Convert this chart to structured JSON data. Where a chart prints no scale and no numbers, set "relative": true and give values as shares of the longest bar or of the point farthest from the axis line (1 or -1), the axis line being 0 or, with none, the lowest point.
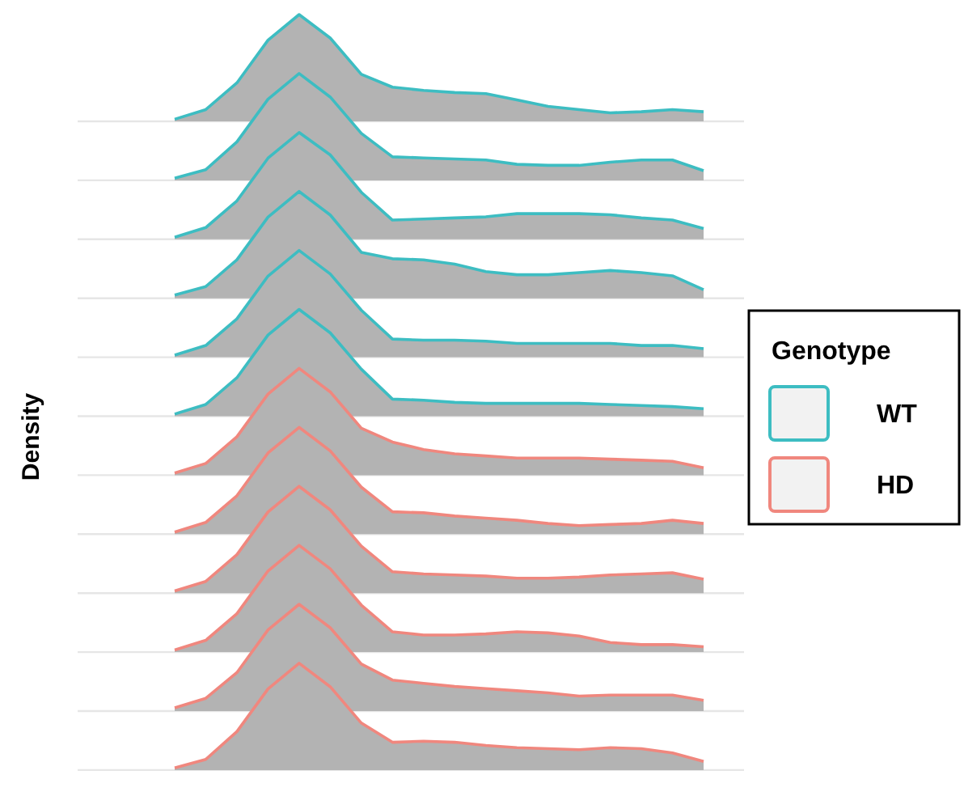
{
  "chart_data": [
    {
      "type": "area",
      "relative": true,
      "line_style": "solid",
      "legend": "right",
      "legend_title": "Genotype",
      "categories": [
        null,
        null,
        null,
        null,
        null,
        null,
        null,
        null,
        null,
        null,
        null,
        null,
        null,
        null,
        null,
        null,
        null,
        null
      ],
      "series": [
        {
          "name": "WT",
          "color": "#3dbdc2",
          "values": [
            0.02,
            0.11,
            0.36,
            0.76,
            1,
            0.78,
            0.44,
            0.32,
            0.29,
            0.27,
            0.26,
            0.2,
            0.14,
            0.11,
            0.08,
            0.09,
            0.11,
            0.09
          ]
        }
      ]
    },
    {
      "type": "area",
      "relative": true,
      "line_style": "solid",
      "categories": [
        null,
        null,
        null,
        null,
        null,
        null,
        null,
        null,
        null,
        null,
        null,
        null,
        null,
        null,
        null,
        null,
        null,
        null
      ],
      "series": [
        {
          "color": "#3dbdc2",
          "values": [
            0.02,
            0.1,
            0.36,
            0.76,
            1,
            0.78,
            0.44,
            0.22,
            0.21,
            0.2,
            0.19,
            0.15,
            0.14,
            0.14,
            0.17,
            0.19,
            0.19,
            0.09
          ]
        }
      ]
    },
    {
      "type": "area",
      "relative": true,
      "line_style": "solid",
      "categories": [
        null,
        null,
        null,
        null,
        null,
        null,
        null,
        null,
        null,
        null,
        null,
        null,
        null,
        null,
        null,
        null,
        null,
        null
      ],
      "series": [
        {
          "color": "#3dbdc2",
          "values": [
            0.02,
            0.11,
            0.36,
            0.76,
            1,
            0.79,
            0.44,
            0.18,
            0.19,
            0.2,
            0.21,
            0.24,
            0.24,
            0.24,
            0.23,
            0.2,
            0.18,
            0.1
          ]
        }
      ]
    },
    {
      "type": "area",
      "relative": true,
      "line_style": "solid",
      "categories": [
        null,
        null,
        null,
        null,
        null,
        null,
        null,
        null,
        null,
        null,
        null,
        null,
        null,
        null,
        null,
        null,
        null,
        null
      ],
      "series": [
        {
          "color": "#3dbdc2",
          "values": [
            0.03,
            0.11,
            0.36,
            0.76,
            1,
            0.78,
            0.43,
            0.37,
            0.36,
            0.32,
            0.25,
            0.22,
            0.22,
            0.24,
            0.26,
            0.24,
            0.21,
            0.08
          ]
        }
      ]
    },
    {
      "type": "area",
      "relative": true,
      "line_style": "solid",
      "categories": [
        null,
        null,
        null,
        null,
        null,
        null,
        null,
        null,
        null,
        null,
        null,
        null,
        null,
        null,
        null,
        null,
        null,
        null
      ],
      "series": [
        {
          "color": "#3dbdc2",
          "values": [
            0.02,
            0.11,
            0.36,
            0.76,
            1,
            0.78,
            0.44,
            0.17,
            0.16,
            0.16,
            0.15,
            0.13,
            0.13,
            0.13,
            0.13,
            0.11,
            0.11,
            0.08
          ]
        }
      ]
    },
    {
      "type": "area",
      "relative": true,
      "line_style": "solid",
      "ylabel": "Density",
      "categories": [
        null,
        null,
        null,
        null,
        null,
        null,
        null,
        null,
        null,
        null,
        null,
        null,
        null,
        null,
        null,
        null,
        null,
        null
      ],
      "series": [
        {
          "color": "#3dbdc2",
          "values": [
            0.02,
            0.11,
            0.36,
            0.76,
            1,
            0.78,
            0.44,
            0.16,
            0.15,
            0.13,
            0.12,
            0.12,
            0.12,
            0.12,
            0.11,
            0.1,
            0.09,
            0.07
          ]
        }
      ]
    },
    {
      "type": "area",
      "relative": true,
      "line_style": "solid",
      "legend": "right",
      "categories": [
        null,
        null,
        null,
        null,
        null,
        null,
        null,
        null,
        null,
        null,
        null,
        null,
        null,
        null,
        null,
        null,
        null,
        null
      ],
      "series": [
        {
          "name": "HD",
          "color": "#f0877e",
          "values": [
            0.02,
            0.11,
            0.36,
            0.76,
            1,
            0.78,
            0.44,
            0.31,
            0.24,
            0.2,
            0.18,
            0.16,
            0.16,
            0.16,
            0.15,
            0.14,
            0.13,
            0.07
          ]
        }
      ]
    },
    {
      "type": "area",
      "relative": true,
      "line_style": "solid",
      "categories": [
        null,
        null,
        null,
        null,
        null,
        null,
        null,
        null,
        null,
        null,
        null,
        null,
        null,
        null,
        null,
        null,
        null,
        null
      ],
      "series": [
        {
          "color": "#f0877e",
          "values": [
            0.02,
            0.11,
            0.36,
            0.76,
            1,
            0.78,
            0.44,
            0.21,
            0.2,
            0.17,
            0.15,
            0.13,
            0.1,
            0.08,
            0.09,
            0.1,
            0.13,
            0.1
          ]
        }
      ]
    },
    {
      "type": "area",
      "relative": true,
      "line_style": "solid",
      "categories": [
        null,
        null,
        null,
        null,
        null,
        null,
        null,
        null,
        null,
        null,
        null,
        null,
        null,
        null,
        null,
        null,
        null,
        null
      ],
      "series": [
        {
          "color": "#f0877e",
          "values": [
            0.02,
            0.11,
            0.36,
            0.76,
            1,
            0.78,
            0.44,
            0.2,
            0.18,
            0.17,
            0.16,
            0.14,
            0.14,
            0.15,
            0.17,
            0.18,
            0.19,
            0.13
          ]
        }
      ]
    },
    {
      "type": "area",
      "relative": true,
      "line_style": "solid",
      "categories": [
        null,
        null,
        null,
        null,
        null,
        null,
        null,
        null,
        null,
        null,
        null,
        null,
        null,
        null,
        null,
        null,
        null,
        null
      ],
      "series": [
        {
          "color": "#f0877e",
          "values": [
            0.02,
            0.11,
            0.36,
            0.76,
            1,
            0.78,
            0.44,
            0.19,
            0.16,
            0.16,
            0.17,
            0.19,
            0.18,
            0.15,
            0.09,
            0.07,
            0.07,
            0.05
          ]
        }
      ]
    },
    {
      "type": "area",
      "relative": true,
      "line_style": "solid",
      "categories": [
        null,
        null,
        null,
        null,
        null,
        null,
        null,
        null,
        null,
        null,
        null,
        null,
        null,
        null,
        null,
        null,
        null,
        null
      ],
      "series": [
        {
          "color": "#f0877e",
          "values": [
            0.03,
            0.12,
            0.36,
            0.76,
            1,
            0.78,
            0.44,
            0.29,
            0.26,
            0.23,
            0.21,
            0.19,
            0.17,
            0.14,
            0.15,
            0.15,
            0.15,
            0.1
          ]
        }
      ]
    },
    {
      "type": "area",
      "relative": true,
      "line_style": "solid",
      "categories": [
        null,
        null,
        null,
        null,
        null,
        null,
        null,
        null,
        null,
        null,
        null,
        null,
        null,
        null,
        null,
        null,
        null,
        null
      ],
      "series": [
        {
          "color": "#f0877e",
          "values": [
            0.02,
            0.1,
            0.36,
            0.76,
            1,
            0.78,
            0.44,
            0.26,
            0.27,
            0.26,
            0.23,
            0.21,
            0.2,
            0.19,
            0.21,
            0.2,
            0.16,
            0.08
          ]
        }
      ]
    }
  ]
}
